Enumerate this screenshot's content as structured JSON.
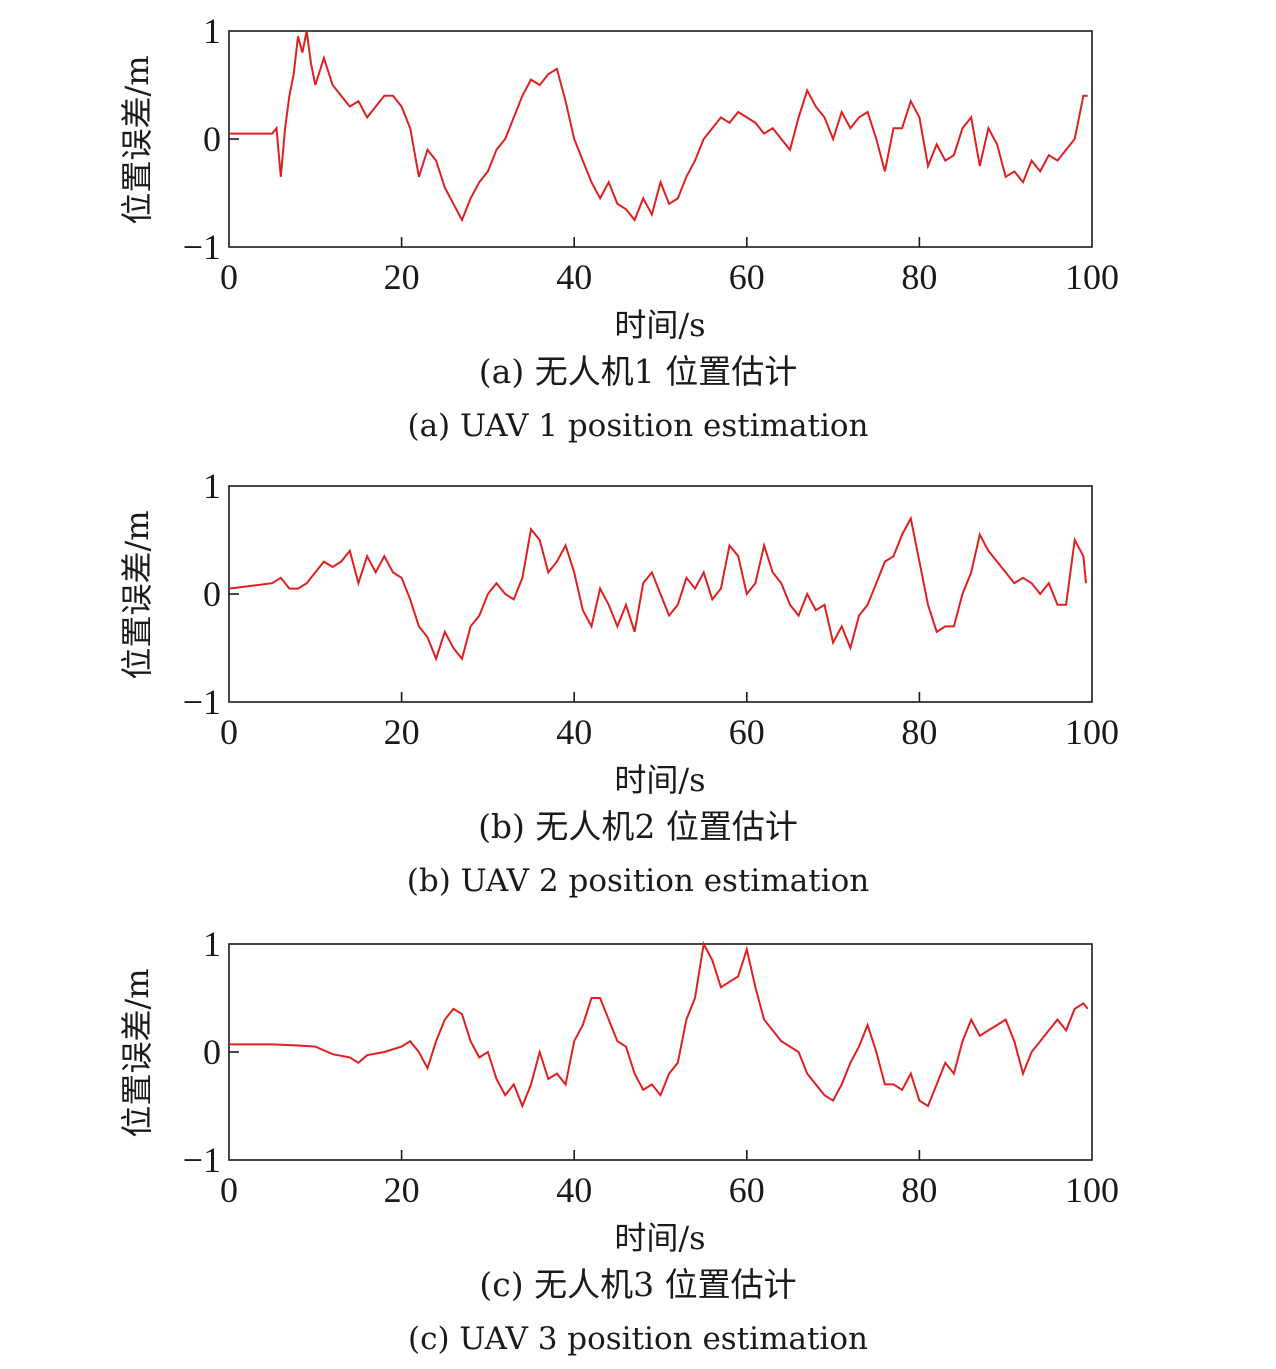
{
  "chart_data": [
    {
      "type": "line",
      "panel_label_cn": "(a) 无人机1 位置估计",
      "panel_label_en": "(a) UAV 1 position estimation",
      "xlabel": "时间/s",
      "ylabel": "位置误差/m",
      "xlim": [
        0,
        100
      ],
      "ylim": [
        -1,
        1
      ],
      "xticks": [
        "0",
        "20",
        "40",
        "60",
        "80",
        "100"
      ],
      "yticks": [
        "1",
        "0",
        "−1"
      ],
      "grid": false,
      "color": "#e02020",
      "series": [
        {
          "x": [
            0,
            5,
            5.5,
            6,
            6.5,
            7,
            7.5,
            8,
            8.5,
            9,
            9.5,
            10,
            11,
            12,
            13,
            14,
            15,
            16,
            17,
            18,
            19,
            20,
            21,
            22,
            23,
            24,
            25,
            26,
            27,
            28,
            29,
            30,
            31,
            32,
            33,
            34,
            35,
            36,
            37,
            38,
            39,
            40,
            41,
            42,
            43,
            44,
            45,
            46,
            47,
            48,
            49,
            50,
            51,
            52,
            53,
            54,
            55,
            56,
            57,
            58,
            59,
            60,
            61,
            62,
            63,
            64,
            65,
            66,
            67,
            68,
            69,
            70,
            71,
            72,
            73,
            74,
            75,
            76,
            77,
            78,
            79,
            80,
            81,
            82,
            83,
            84,
            85,
            86,
            87,
            88,
            89,
            90,
            91,
            92,
            93,
            94,
            95,
            96,
            97,
            98,
            99,
            99.5
          ],
          "y": [
            0.05,
            0.05,
            0.1,
            -0.35,
            0.1,
            0.4,
            0.6,
            0.95,
            0.8,
            1.0,
            0.7,
            0.5,
            0.75,
            0.5,
            0.4,
            0.3,
            0.35,
            0.2,
            0.3,
            0.4,
            0.4,
            0.3,
            0.1,
            -0.35,
            -0.1,
            -0.2,
            -0.45,
            -0.6,
            -0.75,
            -0.55,
            -0.4,
            -0.3,
            -0.1,
            0.0,
            0.2,
            0.4,
            0.55,
            0.5,
            0.6,
            0.65,
            0.35,
            0.0,
            -0.2,
            -0.4,
            -0.55,
            -0.4,
            -0.6,
            -0.65,
            -0.75,
            -0.55,
            -0.7,
            -0.4,
            -0.6,
            -0.55,
            -0.35,
            -0.2,
            0.0,
            0.1,
            0.2,
            0.15,
            0.25,
            0.2,
            0.15,
            0.05,
            0.1,
            0.0,
            -0.1,
            0.2,
            0.45,
            0.3,
            0.2,
            0.0,
            0.25,
            0.1,
            0.2,
            0.25,
            0.0,
            -0.3,
            0.1,
            0.1,
            0.35,
            0.2,
            -0.25,
            -0.05,
            -0.2,
            -0.15,
            0.1,
            0.2,
            -0.25,
            0.1,
            -0.05,
            -0.35,
            -0.3,
            -0.4,
            -0.2,
            -0.3,
            -0.15,
            -0.2,
            -0.1,
            0.0,
            0.4,
            0.4
          ]
        }
      ]
    },
    {
      "type": "line",
      "panel_label_cn": "(b) 无人机2 位置估计",
      "panel_label_en": "(b) UAV 2 position estimation",
      "xlabel": "时间/s",
      "ylabel": "位置误差/m",
      "xlim": [
        0,
        100
      ],
      "ylim": [
        -1,
        1
      ],
      "xticks": [
        "0",
        "20",
        "40",
        "60",
        "80",
        "100"
      ],
      "yticks": [
        "1",
        "0",
        "−1"
      ],
      "grid": false,
      "color": "#e02020",
      "series": [
        {
          "x": [
            0,
            5,
            6,
            7,
            8,
            9,
            10,
            11,
            12,
            13,
            14,
            15,
            16,
            17,
            18,
            19,
            20,
            21,
            22,
            23,
            24,
            25,
            26,
            27,
            28,
            29,
            30,
            31,
            32,
            33,
            34,
            35,
            36,
            37,
            38,
            39,
            40,
            41,
            42,
            43,
            44,
            45,
            46,
            47,
            48,
            49,
            50,
            51,
            52,
            53,
            54,
            55,
            56,
            57,
            58,
            59,
            60,
            61,
            62,
            63,
            64,
            65,
            66,
            67,
            68,
            69,
            70,
            71,
            72,
            73,
            74,
            75,
            76,
            77,
            78,
            79,
            80,
            81,
            82,
            83,
            84,
            85,
            86,
            87,
            88,
            89,
            90,
            91,
            92,
            93,
            94,
            95,
            96,
            97,
            98,
            99,
            99.3
          ],
          "y": [
            0.05,
            0.1,
            0.15,
            0.05,
            0.05,
            0.1,
            0.2,
            0.3,
            0.25,
            0.3,
            0.4,
            0.1,
            0.35,
            0.2,
            0.35,
            0.2,
            0.15,
            -0.05,
            -0.3,
            -0.4,
            -0.6,
            -0.35,
            -0.5,
            -0.6,
            -0.3,
            -0.2,
            0.0,
            0.1,
            0.0,
            -0.05,
            0.15,
            0.6,
            0.5,
            0.2,
            0.3,
            0.45,
            0.2,
            -0.15,
            -0.3,
            0.05,
            -0.1,
            -0.3,
            -0.1,
            -0.35,
            0.1,
            0.2,
            0.0,
            -0.2,
            -0.1,
            0.15,
            0.05,
            0.2,
            -0.05,
            0.05,
            0.45,
            0.35,
            0.0,
            0.1,
            0.45,
            0.2,
            0.1,
            -0.1,
            -0.2,
            0.0,
            -0.15,
            -0.1,
            -0.45,
            -0.3,
            -0.5,
            -0.2,
            -0.1,
            0.1,
            0.3,
            0.35,
            0.55,
            0.7,
            0.3,
            -0.1,
            -0.35,
            -0.3,
            -0.3,
            0.0,
            0.2,
            0.55,
            0.4,
            0.3,
            0.2,
            0.1,
            0.15,
            0.1,
            0.0,
            0.1,
            -0.1,
            -0.1,
            0.5,
            0.35,
            0.1
          ]
        }
      ]
    },
    {
      "type": "line",
      "panel_label_cn": "(c) 无人机3 位置估计",
      "panel_label_en": "(c) UAV 3 position estimation",
      "xlabel": "时间/s",
      "ylabel": "位置误差/m",
      "xlim": [
        0,
        100
      ],
      "ylim": [
        -1,
        1
      ],
      "xticks": [
        "0",
        "20",
        "40",
        "60",
        "80",
        "100"
      ],
      "yticks": [
        "1",
        "0",
        "−1"
      ],
      "grid": false,
      "color": "#e02020",
      "series": [
        {
          "x": [
            0,
            5,
            8,
            10,
            12,
            14,
            15,
            16,
            18,
            20,
            21,
            22,
            23,
            24,
            25,
            26,
            27,
            28,
            29,
            30,
            31,
            32,
            33,
            34,
            35,
            36,
            37,
            38,
            39,
            40,
            41,
            42,
            43,
            44,
            45,
            46,
            47,
            48,
            49,
            50,
            51,
            52,
            53,
            54,
            55,
            56,
            57,
            58,
            59,
            60,
            61,
            62,
            63,
            64,
            65,
            66,
            67,
            68,
            69,
            70,
            71,
            72,
            73,
            74,
            75,
            76,
            77,
            78,
            79,
            80,
            81,
            82,
            83,
            84,
            85,
            86,
            87,
            88,
            89,
            90,
            91,
            92,
            93,
            94,
            95,
            96,
            97,
            98,
            99,
            99.5
          ],
          "y": [
            0.07,
            0.07,
            0.06,
            0.05,
            -0.02,
            -0.05,
            -0.1,
            -0.03,
            0.0,
            0.05,
            0.1,
            0.0,
            -0.15,
            0.1,
            0.3,
            0.4,
            0.35,
            0.1,
            -0.05,
            0.0,
            -0.25,
            -0.4,
            -0.3,
            -0.5,
            -0.3,
            0.0,
            -0.25,
            -0.2,
            -0.3,
            0.1,
            0.25,
            0.5,
            0.5,
            0.3,
            0.1,
            0.05,
            -0.2,
            -0.35,
            -0.3,
            -0.4,
            -0.2,
            -0.1,
            0.3,
            0.5,
            1.0,
            0.85,
            0.6,
            0.65,
            0.7,
            0.95,
            0.6,
            0.3,
            0.2,
            0.1,
            0.05,
            0.0,
            -0.2,
            -0.3,
            -0.4,
            -0.45,
            -0.3,
            -0.1,
            0.05,
            0.25,
            0.0,
            -0.3,
            -0.3,
            -0.35,
            -0.2,
            -0.45,
            -0.5,
            -0.3,
            -0.1,
            -0.2,
            0.1,
            0.3,
            0.15,
            0.2,
            0.25,
            0.3,
            0.1,
            -0.2,
            0.0,
            0.1,
            0.2,
            0.3,
            0.2,
            0.4,
            0.45,
            0.4
          ]
        }
      ]
    }
  ]
}
